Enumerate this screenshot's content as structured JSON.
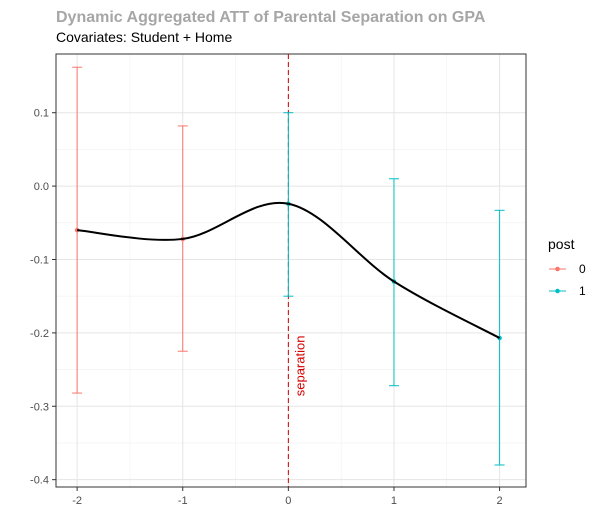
{
  "chart_data": {
    "type": "line",
    "title": "Dynamic Aggregated ATT of Parental Separation on GPA",
    "subtitle": "Covariates: Student + Home",
    "xlabel": "",
    "ylabel": "",
    "xlim": [
      -2.2,
      2.25
    ],
    "ylim": [
      -0.41,
      0.18
    ],
    "x_ticks": [
      -2,
      -1,
      0,
      1,
      2
    ],
    "y_ticks": [
      0.1,
      0.0,
      -0.1,
      -0.2,
      -0.3,
      -0.4
    ],
    "x_tick_labels": [
      "-2",
      "-1",
      "0",
      "1",
      "2"
    ],
    "y_tick_labels": [
      "0.1",
      "0.0",
      "-0.1",
      "-0.2",
      "-0.3",
      "-0.4"
    ],
    "grid": true,
    "legend": {
      "title": "post",
      "placement": "right",
      "entries": [
        {
          "label": "0",
          "color": "#f8766d"
        },
        {
          "label": "1",
          "color": "#00bfc4"
        }
      ]
    },
    "series": [
      {
        "name": "0",
        "color": "#f8766d",
        "points": [
          {
            "x": -2,
            "y": -0.06,
            "lower": -0.282,
            "upper": 0.162
          },
          {
            "x": -1,
            "y": -0.072,
            "lower": -0.225,
            "upper": 0.082
          }
        ]
      },
      {
        "name": "1",
        "color": "#00bfc4",
        "points": [
          {
            "x": 0,
            "y": -0.024,
            "lower": -0.15,
            "upper": 0.1
          },
          {
            "x": 1,
            "y": -0.13,
            "lower": -0.272,
            "upper": 0.01
          },
          {
            "x": 2,
            "y": -0.207,
            "lower": -0.38,
            "upper": -0.033
          }
        ]
      }
    ],
    "smooth_line": {
      "color": "#000000",
      "x": [
        -2,
        -1,
        0,
        1,
        2
      ],
      "y": [
        -0.06,
        -0.072,
        -0.024,
        -0.13,
        -0.207
      ]
    },
    "vline": {
      "x": 0,
      "color": "#d40000",
      "label": "separation"
    }
  }
}
